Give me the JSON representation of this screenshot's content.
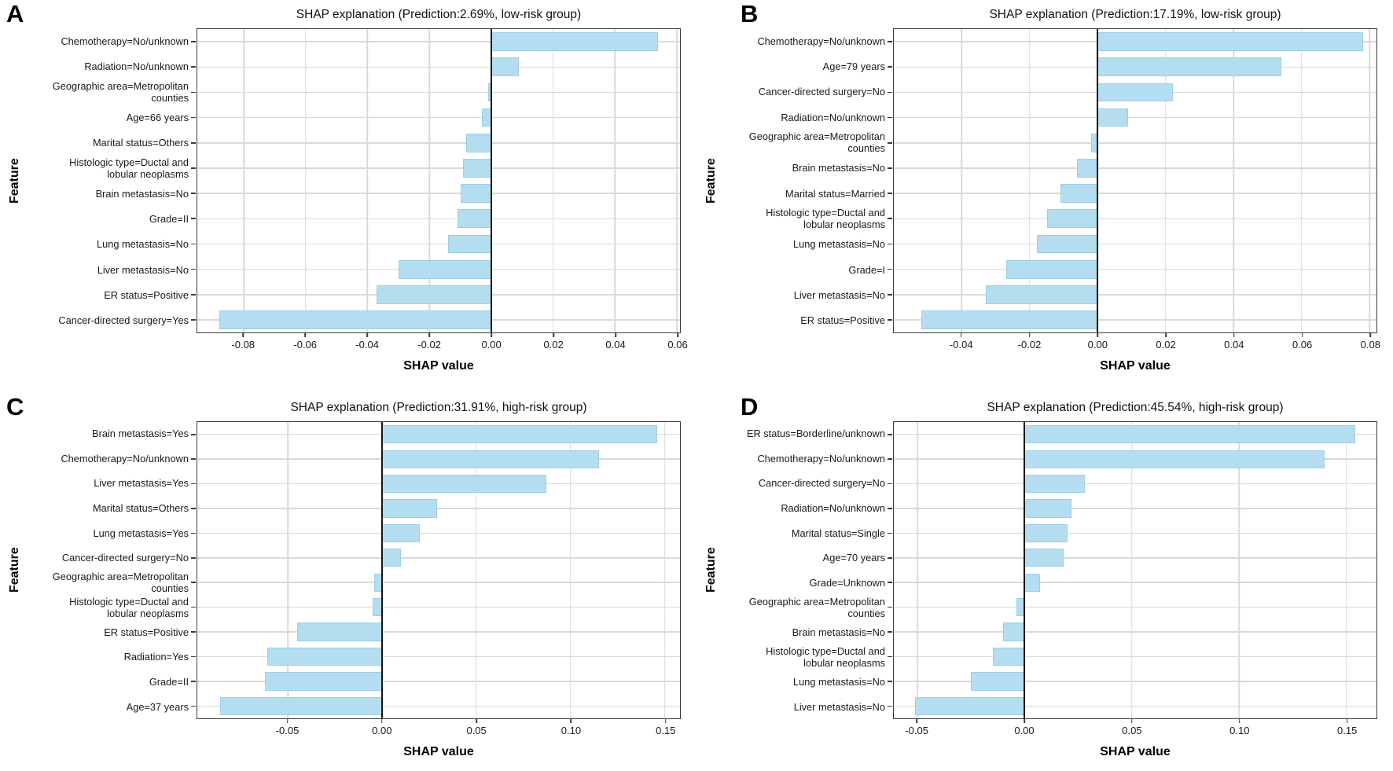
{
  "figure": {
    "background": "#ffffff",
    "colors": {
      "bar_fill": "#b4ddf0",
      "bar_border": "#9fcfe6",
      "grid": "#d9d9d9",
      "plot_border": "#3a3a3a",
      "zero_line": "#151515",
      "text": "#111111"
    }
  },
  "chart_data": [
    {
      "panel_label": "A",
      "type": "bar",
      "orientation": "horizontal",
      "title": "SHAP explanation (Prediction:2.69%, low-risk group)",
      "xlabel": "SHAP value",
      "ylabel": "Feature",
      "grid": true,
      "legend": false,
      "xlim": [
        -0.095,
        0.061
      ],
      "xticks": [
        -0.08,
        -0.06,
        -0.04,
        -0.02,
        0.0,
        0.02,
        0.04,
        0.06
      ],
      "xtick_labels": [
        "-0.08",
        "-0.06",
        "-0.04",
        "-0.02",
        "0.00",
        "0.02",
        "0.04",
        "0.06"
      ],
      "categories": [
        "Chemotherapy=No/unknown",
        "Radiation=No/unknown",
        "Geographic area=Metropolitan\ncounties",
        "Age=66 years",
        "Marital status=Others",
        "Histologic type=Ductal and\nlobular neoplasms",
        "Brain metastasis=No",
        "Grade=II",
        "Lung metastasis=No",
        "Liver metastasis=No",
        "ER status=Positive",
        "Cancer-directed surgery=Yes"
      ],
      "values": [
        0.054,
        0.009,
        -0.001,
        -0.003,
        -0.008,
        -0.009,
        -0.01,
        -0.011,
        -0.014,
        -0.03,
        -0.037,
        -0.088
      ]
    },
    {
      "panel_label": "B",
      "type": "bar",
      "orientation": "horizontal",
      "title": "SHAP explanation (Prediction:17.19%, low-risk group)",
      "xlabel": "SHAP value",
      "ylabel": "Feature",
      "grid": true,
      "legend": false,
      "xlim": [
        -0.06,
        0.082
      ],
      "xticks": [
        -0.04,
        -0.02,
        0.0,
        0.02,
        0.04,
        0.06,
        0.08
      ],
      "xtick_labels": [
        "-0.04",
        "-0.02",
        "0.00",
        "0.02",
        "0.04",
        "0.06",
        "0.08"
      ],
      "categories": [
        "Chemotherapy=No/unknown",
        "Age=79 years",
        "Cancer-directed surgery=No",
        "Radiation=No/unknown",
        "Geographic area=Metropolitan\ncounties",
        "Brain metastasis=No",
        "Marital status=Married",
        "Histologic type=Ductal and\nlobular neoplasms",
        "Lung metastasis=No",
        "Grade=I",
        "Liver metastasis=No",
        "ER status=Positive"
      ],
      "values": [
        0.078,
        0.054,
        0.022,
        0.009,
        -0.002,
        -0.006,
        -0.011,
        -0.015,
        -0.018,
        -0.027,
        -0.033,
        -0.052
      ]
    },
    {
      "panel_label": "C",
      "type": "bar",
      "orientation": "horizontal",
      "title": "SHAP explanation (Prediction:31.91%, high-risk group)",
      "xlabel": "SHAP value",
      "ylabel": "Feature",
      "grid": true,
      "legend": false,
      "xlim": [
        -0.098,
        0.158
      ],
      "xticks": [
        -0.05,
        0.0,
        0.05,
        0.1,
        0.15
      ],
      "xtick_labels": [
        "-0.05",
        "0.00",
        "0.05",
        "0.10",
        "0.15"
      ],
      "categories": [
        "Brain metastasis=Yes",
        "Chemotherapy=No/unknown",
        "Liver metastasis=Yes",
        "Marital status=Others",
        "Lung metastasis=Yes",
        "Cancer-directed surgery=No",
        "Geographic area=Metropolitan\ncounties",
        "Histologic type=Ductal and\nlobular neoplasms",
        "ER status=Positive",
        "Radiation=Yes",
        "Grade=II",
        "Age=37 years"
      ],
      "values": [
        0.146,
        0.115,
        0.087,
        0.029,
        0.02,
        0.01,
        -0.004,
        -0.005,
        -0.045,
        -0.061,
        -0.062,
        -0.086
      ]
    },
    {
      "panel_label": "D",
      "type": "bar",
      "orientation": "horizontal",
      "title": "SHAP explanation (Prediction:45.54%, high-risk group)",
      "xlabel": "SHAP value",
      "ylabel": "Feature",
      "grid": true,
      "legend": false,
      "xlim": [
        -0.061,
        0.164
      ],
      "xticks": [
        -0.05,
        0.0,
        0.05,
        0.1,
        0.15
      ],
      "xtick_labels": [
        "-0.05",
        "0.00",
        "0.05",
        "0.10",
        "0.15"
      ],
      "categories": [
        "ER status=Borderline/unknown",
        "Chemotherapy=No/unknown",
        "Cancer-directed surgery=No",
        "Radiation=No/unknown",
        "Marital status=Single",
        "Age=70 years",
        "Grade=Unknown",
        "Geographic area=Metropolitan\ncounties",
        "Brain metastasis=No",
        "Histologic type=Ductal and\nlobular neoplasms",
        "Lung metastasis=No",
        "Liver metastasis=No"
      ],
      "values": [
        0.154,
        0.14,
        0.028,
        0.022,
        0.02,
        0.018,
        0.007,
        -0.004,
        -0.01,
        -0.015,
        -0.025,
        -0.051
      ]
    }
  ]
}
